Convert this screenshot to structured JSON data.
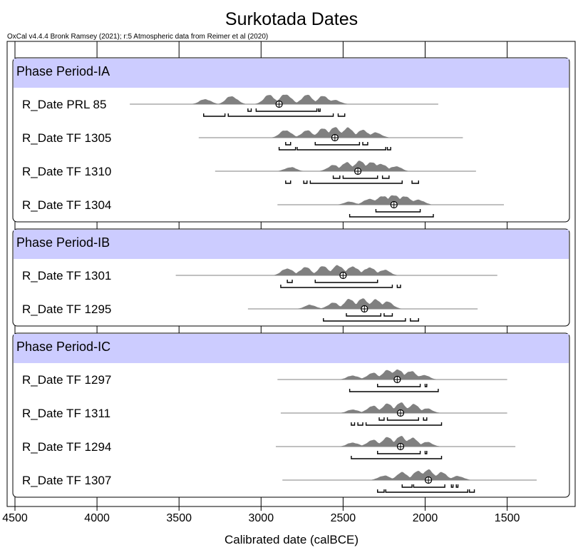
{
  "chart_data": {
    "type": "other",
    "title": "Surkotada Dates",
    "subtitle": "OxCal v4.4.4 Bronk Ramsey (2021); r:5 Atmospheric data from Reimer et al (2020)",
    "xlabel": "Calibrated date (calBCE)",
    "x_ticks": [
      4500,
      4000,
      3500,
      3000,
      2500,
      2000,
      1500
    ],
    "xlim": [
      4500,
      1070
    ],
    "x_reversed": true,
    "grid": true,
    "colors": {
      "phase_band": "#ccccff",
      "distribution": "#808080",
      "frame": "#000000"
    },
    "phases": [
      {
        "label": "Phase Period-IA",
        "dates": [
          {
            "label": "R_Date PRL 85",
            "mean": 2890,
            "line": [
              3800,
              1920
            ],
            "peaks": [
              [
                3340,
                0.5
              ],
              [
                3180,
                0.8
              ],
              [
                2950,
                0.9
              ],
              [
                2850,
                1.0
              ],
              [
                2720,
                0.9
              ],
              [
                2620,
                0.8
              ],
              [
                2550,
                0.4
              ]
            ],
            "sigma1": [
              [
                3080,
                3060
              ],
              [
                3030,
                2660
              ],
              [
                2650,
                2640
              ]
            ],
            "sigma2": [
              [
                3350,
                3220
              ],
              [
                3200,
                2560
              ],
              [
                2530,
                2490
              ]
            ]
          },
          {
            "label": "R_Date TF 1305",
            "mean": 2550,
            "line": [
              3380,
              1770
            ],
            "peaks": [
              [
                2850,
                0.75
              ],
              [
                2720,
                0.7
              ],
              [
                2620,
                0.9
              ],
              [
                2550,
                1.0
              ],
              [
                2470,
                0.95
              ],
              [
                2380,
                0.75
              ],
              [
                2300,
                0.5
              ]
            ],
            "sigma1": [
              [
                2850,
                2820
              ],
              [
                2670,
                2400
              ],
              [
                2380,
                2350
              ]
            ],
            "sigma2": [
              [
                2890,
                2790
              ],
              [
                2780,
                2240
              ],
              [
                2230,
                2210
              ]
            ]
          },
          {
            "label": "R_Date TF 1310",
            "mean": 2410,
            "line": [
              3280,
              1690
            ],
            "peaks": [
              [
                2820,
                0.4
              ],
              [
                2560,
                0.6
              ],
              [
                2480,
                0.85
              ],
              [
                2400,
                1.0
              ],
              [
                2330,
                0.9
              ],
              [
                2270,
                0.75
              ],
              [
                2180,
                0.5
              ]
            ],
            "sigma1": [
              [
                2560,
                2520
              ],
              [
                2500,
                2290
              ],
              [
                2260,
                2220
              ]
            ],
            "sigma2": [
              [
                2850,
                2820
              ],
              [
                2740,
                2720
              ],
              [
                2700,
                2140
              ],
              [
                2080,
                2040
              ]
            ]
          },
          {
            "label": "R_Date TF 1304",
            "mean": 2190,
            "line": [
              2900,
              1520
            ],
            "peaks": [
              [
                2460,
                0.3
              ],
              [
                2340,
                0.6
              ],
              [
                2260,
                0.9
              ],
              [
                2190,
                1.0
              ],
              [
                2120,
                0.85
              ],
              [
                2040,
                0.5
              ]
            ],
            "sigma1": [
              [
                2300,
                2030
              ]
            ],
            "sigma2": [
              [
                2460,
                1950
              ]
            ]
          }
        ]
      },
      {
        "label": "Phase Period-IB",
        "dates": [
          {
            "label": "R_Date TF 1301",
            "mean": 2500,
            "line": [
              3520,
              1560
            ],
            "peaks": [
              [
                2840,
                0.7
              ],
              [
                2730,
                0.8
              ],
              [
                2620,
                0.9
              ],
              [
                2530,
                1.0
              ],
              [
                2440,
                0.9
              ],
              [
                2340,
                0.8
              ],
              [
                2250,
                0.55
              ]
            ],
            "sigma1": [
              [
                2840,
                2810
              ],
              [
                2670,
                2290
              ]
            ],
            "sigma2": [
              [
                2880,
                2200
              ],
              [
                2170,
                2150
              ]
            ]
          },
          {
            "label": "R_Date TF 1295",
            "mean": 2370,
            "line": [
              3080,
              1680
            ],
            "peaks": [
              [
                2700,
                0.4
              ],
              [
                2560,
                0.6
              ],
              [
                2460,
                0.95
              ],
              [
                2380,
                1.0
              ],
              [
                2300,
                0.9
              ],
              [
                2230,
                0.7
              ]
            ],
            "sigma1": [
              [
                2480,
                2270
              ],
              [
                2250,
                2200
              ]
            ],
            "sigma2": [
              [
                2620,
                2120
              ],
              [
                2090,
                2040
              ]
            ]
          }
        ]
      },
      {
        "label": "Phase Period-IC",
        "dates": [
          {
            "label": "R_Date TF 1297",
            "mean": 2170,
            "line": [
              2900,
              1500
            ],
            "peaks": [
              [
                2440,
                0.4
              ],
              [
                2320,
                0.65
              ],
              [
                2230,
                0.9
              ],
              [
                2170,
                1.0
              ],
              [
                2090,
                0.85
              ],
              [
                2010,
                0.45
              ]
            ],
            "sigma1": [
              [
                2290,
                2030
              ],
              [
                2000,
                1990
              ]
            ],
            "sigma2": [
              [
                2460,
                1920
              ]
            ]
          },
          {
            "label": "R_Date TF 1311",
            "mean": 2150,
            "line": [
              2880,
              1500
            ],
            "peaks": [
              [
                2440,
                0.35
              ],
              [
                2320,
                0.7
              ],
              [
                2230,
                0.9
              ],
              [
                2150,
                1.0
              ],
              [
                2070,
                0.85
              ],
              [
                1990,
                0.45
              ]
            ],
            "sigma1": [
              [
                2280,
                2250
              ],
              [
                2230,
                2040
              ],
              [
                2010,
                1990
              ]
            ],
            "sigma2": [
              [
                2450,
                2430
              ],
              [
                2410,
                2380
              ],
              [
                2360,
                1900
              ]
            ]
          },
          {
            "label": "R_Date TF 1294",
            "mean": 2150,
            "line": [
              2910,
              1450
            ],
            "peaks": [
              [
                2440,
                0.4
              ],
              [
                2320,
                0.65
              ],
              [
                2230,
                0.9
              ],
              [
                2150,
                1.0
              ],
              [
                2080,
                0.85
              ],
              [
                1990,
                0.45
              ]
            ],
            "sigma1": [
              [
                2290,
                2030
              ],
              [
                2000,
                1990
              ]
            ],
            "sigma2": [
              [
                2450,
                1900
              ]
            ]
          },
          {
            "label": "R_Date TF 1307",
            "mean": 1980,
            "line": [
              2870,
              1320
            ],
            "peaks": [
              [
                2250,
                0.45
              ],
              [
                2140,
                0.75
              ],
              [
                2040,
                0.9
              ],
              [
                1980,
                1.0
              ],
              [
                1900,
                0.75
              ],
              [
                1800,
                0.4
              ]
            ],
            "sigma1": [
              [
                2140,
                2080
              ],
              [
                2070,
                1880
              ],
              [
                1840,
                1830
              ],
              [
                1810,
                1800
              ]
            ],
            "sigma2": [
              [
                2290,
                2250
              ],
              [
                2240,
                1740
              ],
              [
                1730,
                1700
              ]
            ]
          }
        ]
      }
    ]
  }
}
